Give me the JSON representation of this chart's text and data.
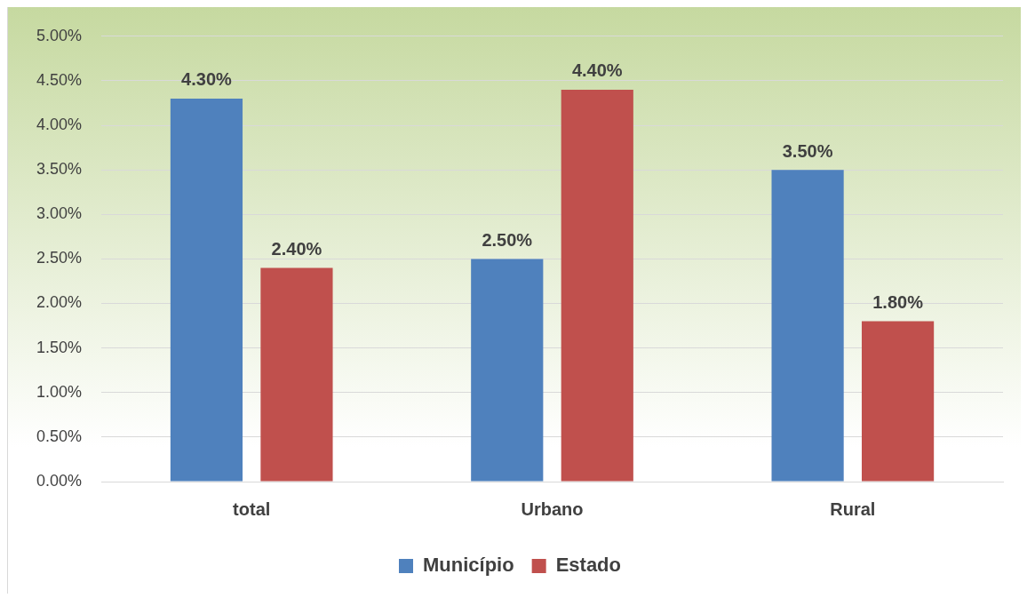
{
  "chart_data": {
    "type": "bar",
    "categories": [
      "total",
      "Urbano",
      "Rural"
    ],
    "series": [
      {
        "name": "Município",
        "color": "#4f81bd",
        "values": [
          4.3,
          2.5,
          3.5
        ],
        "value_labels": [
          "4.30%",
          "2.50%",
          "3.50%"
        ]
      },
      {
        "name": "Estado",
        "color": "#c0504d",
        "values": [
          2.4,
          4.4,
          1.8
        ],
        "value_labels": [
          "2.40%",
          "4.40%",
          "1.80%"
        ]
      }
    ],
    "ylim": [
      0,
      5
    ],
    "yticks": [
      {
        "value": 0,
        "label": "0.00%"
      },
      {
        "value": 0.5,
        "label": "0.50%"
      },
      {
        "value": 1,
        "label": "1.00%"
      },
      {
        "value": 1.5,
        "label": "1.50%"
      },
      {
        "value": 2,
        "label": "2.00%"
      },
      {
        "value": 2.5,
        "label": "2.50%"
      },
      {
        "value": 3,
        "label": "3.00%"
      },
      {
        "value": 3.5,
        "label": "3.50%"
      },
      {
        "value": 4,
        "label": "4.00%"
      },
      {
        "value": 4.5,
        "label": "4.50%"
      },
      {
        "value": 5,
        "label": "5.00%"
      }
    ],
    "grid": "y",
    "legend": "bottom"
  }
}
